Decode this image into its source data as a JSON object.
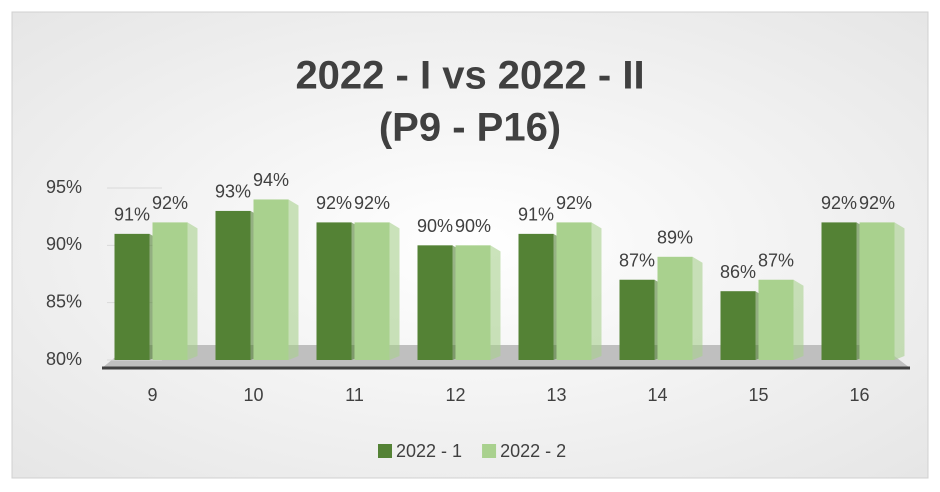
{
  "chart_data": {
    "type": "bar",
    "title": "2022 - I vs 2022 - II",
    "subtitle": "(P9 - P16)",
    "categories": [
      "9",
      "10",
      "11",
      "12",
      "13",
      "14",
      "15",
      "16"
    ],
    "series": [
      {
        "name": "2022 - 1",
        "color": "#548235",
        "values": [
          91,
          93,
          92,
          90,
          91,
          87,
          86,
          92
        ],
        "value_labels": [
          "91%",
          "93%",
          "92%",
          "90%",
          "91%",
          "87%",
          "86%",
          "92%"
        ]
      },
      {
        "name": "2022 - 2",
        "color": "#a9d18e",
        "values": [
          92,
          94,
          92,
          90,
          92,
          89,
          87,
          92
        ],
        "value_labels": [
          "92%",
          "94%",
          "92%",
          "90%",
          "92%",
          "89%",
          "87%",
          "92%"
        ]
      }
    ],
    "ylim": [
      80,
      95
    ],
    "yticks": [
      {
        "value": 80,
        "label": "80%"
      },
      {
        "value": 85,
        "label": "85%"
      },
      {
        "value": 90,
        "label": "90%"
      },
      {
        "value": 95,
        "label": "95%"
      }
    ],
    "grid": true,
    "legend": "bottom"
  }
}
